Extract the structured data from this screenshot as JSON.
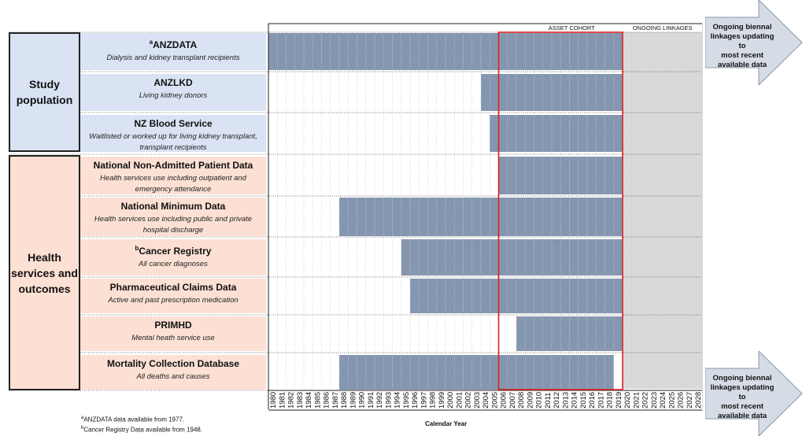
{
  "groups": [
    {
      "label": "Study\npopulation",
      "color": "#dae3f3"
    },
    {
      "label": "Health\nservices and\noutcomes",
      "color": "#fbe0d3"
    }
  ],
  "datasets": [
    {
      "sup": "a",
      "name": "ANZDATA",
      "desc": "Dialysis and kidney transplant recipients",
      "start": 1980,
      "end": 2019,
      "group": 0
    },
    {
      "sup": "",
      "name": "ANZLKD",
      "desc": "Living kidney donors",
      "start": 2004,
      "end": 2019,
      "group": 0
    },
    {
      "sup": "",
      "name": "NZ Blood Service",
      "desc": "Waitlisted or worked up for living kidney transplant,\ntransplant recipients",
      "start": 2005,
      "end": 2019,
      "group": 0
    },
    {
      "sup": "",
      "name": "National Non-Admitted Patient Data",
      "desc": "Health services use including outpatient and\nemergency attendance",
      "start": 2006,
      "end": 2019,
      "group": 1
    },
    {
      "sup": "",
      "name": "National Minimum Data",
      "desc": "Health services use including public and private\nhospital discharge",
      "start": 1988,
      "end": 2019,
      "group": 1
    },
    {
      "sup": "b",
      "name": "Cancer Registry",
      "desc": "All cancer diagnoses",
      "start": 1995,
      "end": 2019,
      "group": 1
    },
    {
      "sup": "",
      "name": "Pharmaceutical Claims Data",
      "desc": "Active and past prescription medication",
      "start": 1996,
      "end": 2019,
      "group": 1
    },
    {
      "sup": "",
      "name": "PRIMHD",
      "desc": "Mental heath service use",
      "start": 2008,
      "end": 2019,
      "group": 1
    },
    {
      "sup": "",
      "name": "Mortality Collection Database",
      "desc": "All deaths and causes",
      "start": 1988,
      "end": 2018,
      "group": 1
    }
  ],
  "years": {
    "first": 1980,
    "last": 2028
  },
  "asset_cohort": {
    "label": "ASSET COHORT",
    "start": 2006,
    "end": 2019
  },
  "ongoing": {
    "label": "ONGOING LINKAGES",
    "start": 2020,
    "end": 2028
  },
  "arrow_text": "Ongoing biennal\nlinkages updating to\nmost recent\navailable data",
  "x_axis_title": "Calendar Year",
  "footnotes": [
    {
      "sup": "a",
      "text": "ANZDATA data available from 1977."
    },
    {
      "sup": "b",
      "text": "Cancer Registry Data available from 1948."
    }
  ],
  "colors": {
    "bar": "#8496b0",
    "ongoing": "#d9d9d9",
    "cohort_border": "#e02020"
  }
}
